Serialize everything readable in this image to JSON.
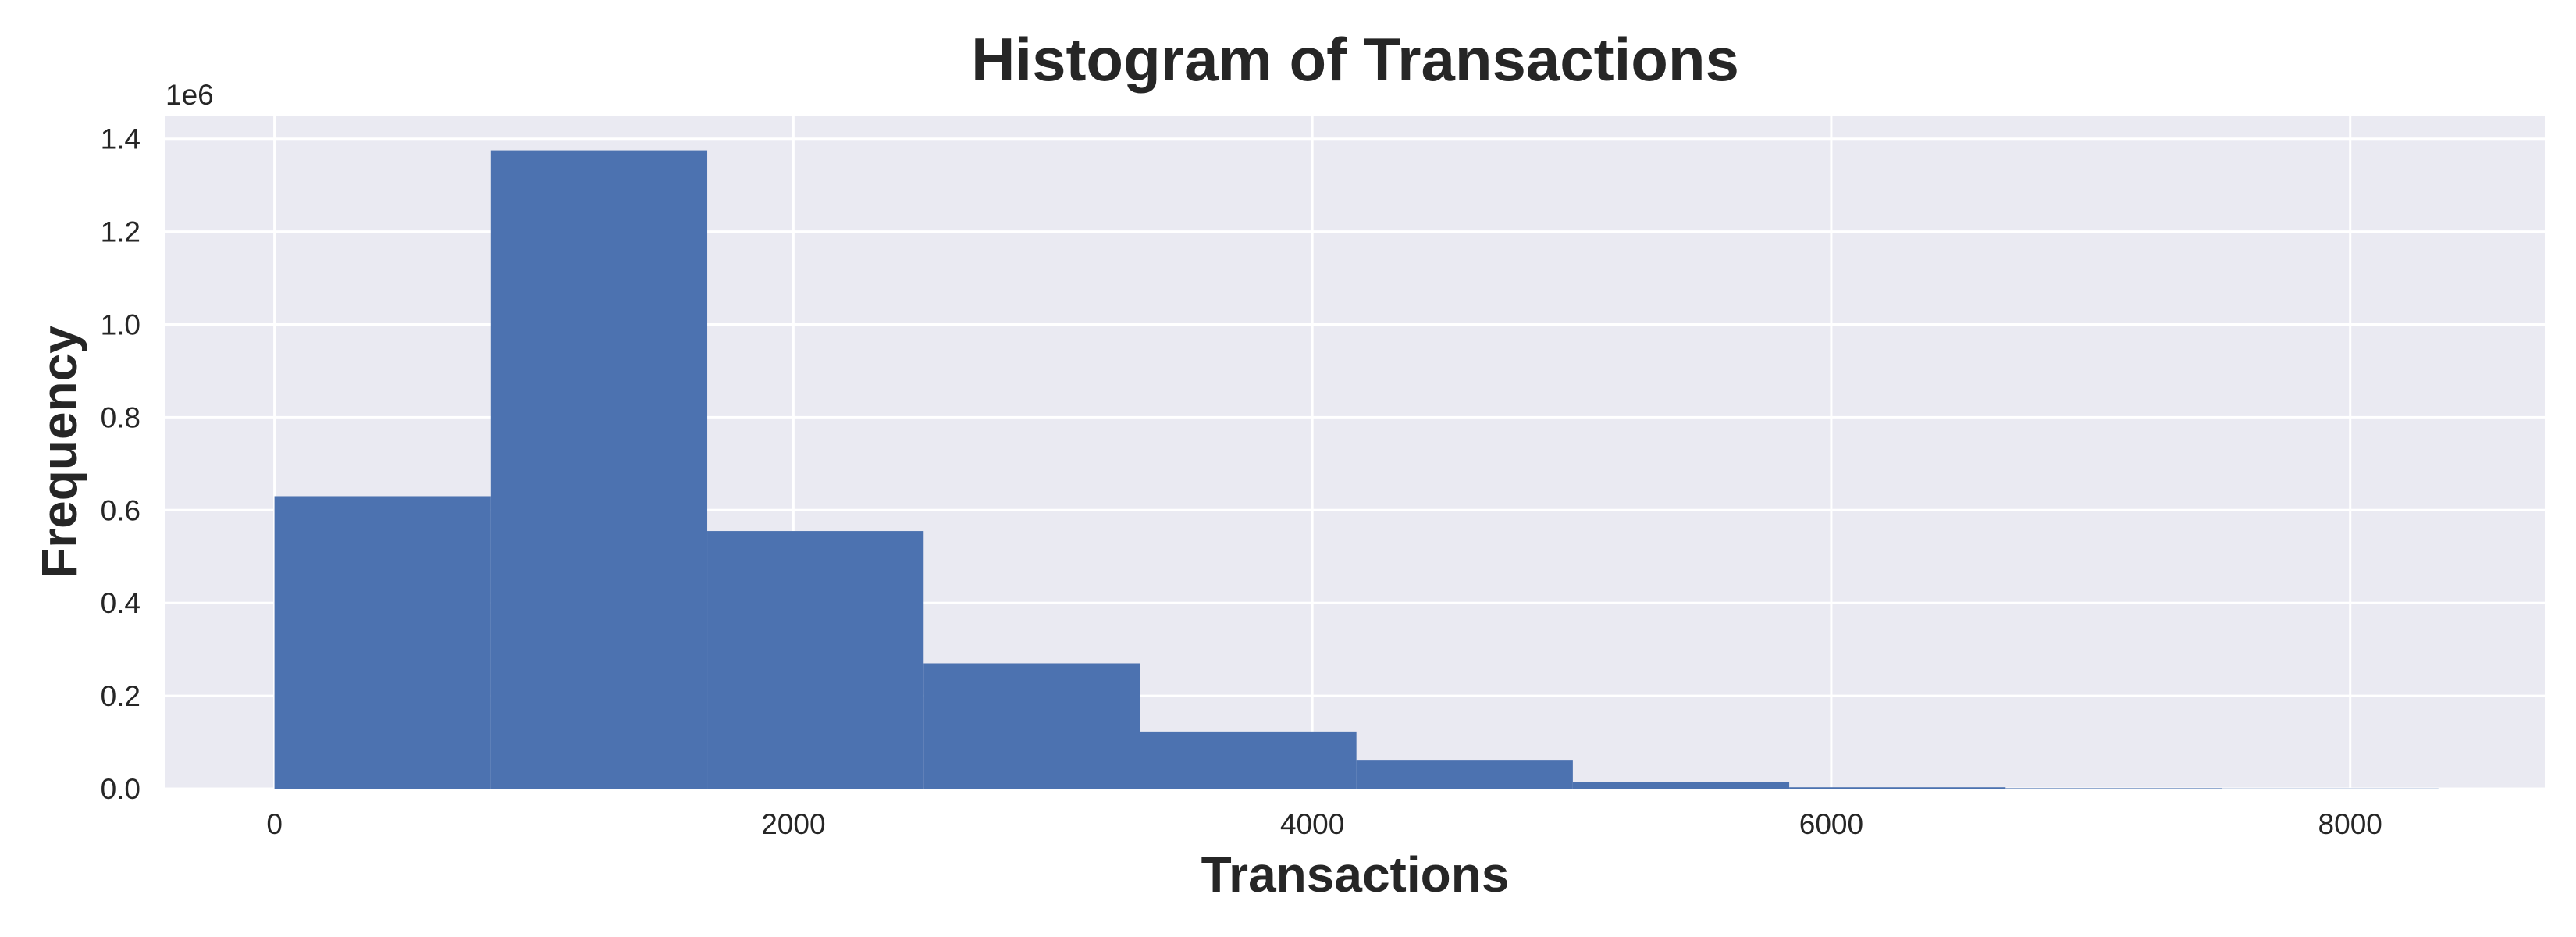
{
  "chart_data": {
    "type": "bar",
    "title": "Histogram of Transactions",
    "xlabel": "Transactions",
    "ylabel": "Frequency",
    "y_offset_label": "1e6",
    "bin_edges": [
      0,
      834,
      1668,
      2502,
      3336,
      4170,
      5004,
      5838,
      6672,
      7506,
      8340
    ],
    "values": [
      0.63,
      1.375,
      0.555,
      0.27,
      0.123,
      0.062,
      0.015,
      0.003,
      0.001,
      0.0004
    ],
    "value_unit_multiplier": 1000000,
    "xlim": [
      -420,
      8750
    ],
    "ylim": [
      0,
      1.45
    ],
    "xticks": [
      0,
      2000,
      4000,
      6000,
      8000
    ],
    "xtick_labels": [
      "0",
      "2000",
      "4000",
      "6000",
      "8000"
    ],
    "yticks": [
      0.0,
      0.2,
      0.4,
      0.6,
      0.8,
      1.0,
      1.2,
      1.4
    ],
    "ytick_labels": [
      "0.0",
      "0.2",
      "0.4",
      "0.6",
      "0.8",
      "1.0",
      "1.2",
      "1.4"
    ],
    "grid": true,
    "legend": "none",
    "colors": {
      "bar": "#4c72b0",
      "plot_background": "#eaeaf2",
      "grid": "#ffffff",
      "text": "#262626"
    }
  }
}
